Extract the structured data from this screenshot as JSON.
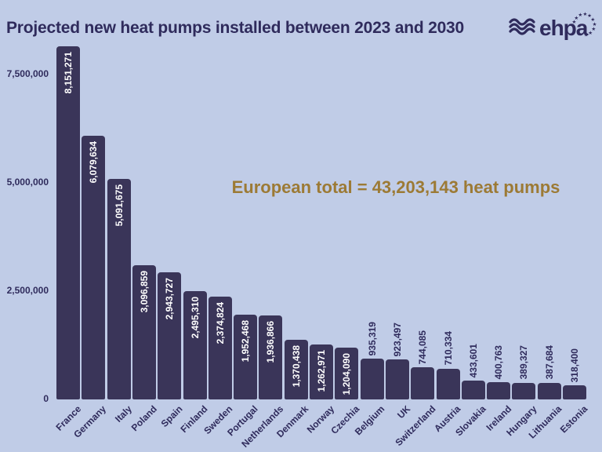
{
  "title": "Projected new heat pumps installed between 2023 and 2030",
  "logo": {
    "text": "ehpa",
    "waves_icon": "waves-icon",
    "stars_icon": "eu-stars-icon"
  },
  "annotation": "European total = 43,203,143 heat pumps",
  "chart_data": {
    "type": "bar",
    "title": "Projected new heat pumps installed between 2023 and 2030",
    "categories": [
      "France",
      "Germany",
      "Italy",
      "Poland",
      "Spain",
      "Finland",
      "Sweden",
      "Portugal",
      "Netherlands",
      "Denmark",
      "Norway",
      "Czechia",
      "Belgium",
      "UK",
      "Switzerland",
      "Austria",
      "Slovakia",
      "Ireland",
      "Hungary",
      "Lithuania",
      "Estonia"
    ],
    "values": [
      8151271,
      6079634,
      5091675,
      3096859,
      2943727,
      2495310,
      2374824,
      1952468,
      1936866,
      1370438,
      1262971,
      1204090,
      935319,
      923497,
      744085,
      710334,
      433601,
      400763,
      389327,
      387684,
      318400
    ],
    "value_labels": [
      "8,151,271",
      "6,079,634",
      "5,091,675",
      "3,096,859",
      "2,943,727",
      "2,495,310",
      "2,374,824",
      "1,952,468",
      "1,936,866",
      "1,370,438",
      "1,262,971",
      "1,204,090",
      "935,319",
      "923,497",
      "744,085",
      "710,334",
      "433,601",
      "400,763",
      "389,327",
      "387,684",
      "318,400"
    ],
    "xlabel": "",
    "ylabel": "",
    "ylim": [
      0,
      8600000
    ],
    "yticks": {
      "values": [
        0,
        2500000,
        5000000,
        7500000
      ],
      "labels": [
        "0",
        "2,500,000",
        "5,000,000",
        "7,500,000"
      ]
    },
    "grid": false,
    "legend": "none",
    "total_annotation": "European total = 43,203,143 heat pumps",
    "bar_color": "#3A3559",
    "value_label_inside_color": "#FFFFFF",
    "value_label_outside_color": "#2F2B5C",
    "inside_label_min_value": 1000000
  },
  "colors": {
    "background": "#C0CCE7",
    "bar": "#3A3559",
    "text_navy": "#2F2B5C",
    "gold": "#9C7A35"
  }
}
